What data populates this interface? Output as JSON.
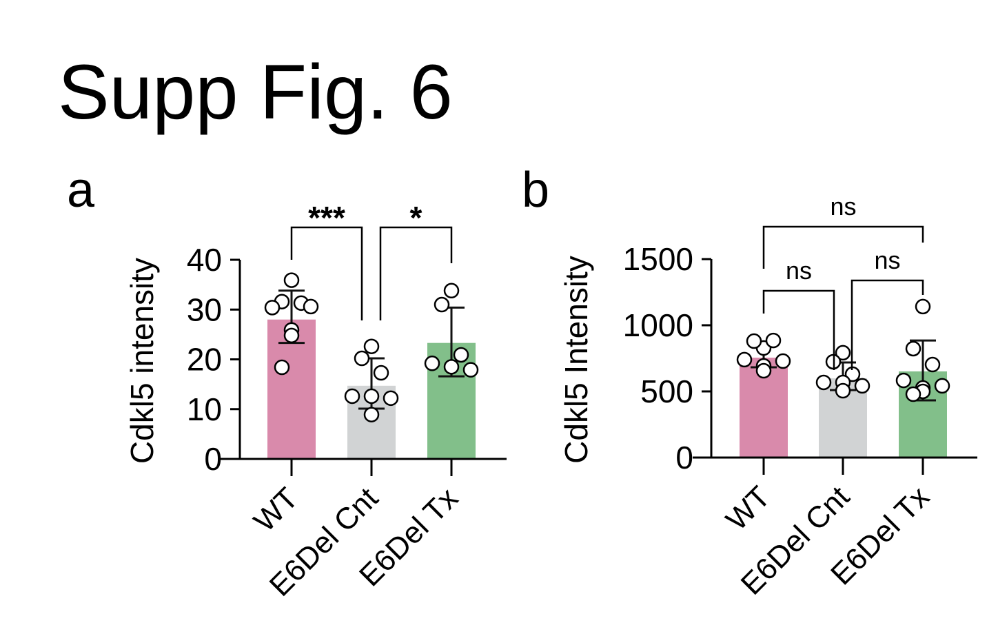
{
  "figure_title": "Supp Fig. 6",
  "chart_data": [
    {
      "panel_label": "a",
      "type": "bar",
      "ylabel": "Cdkl5 intensity",
      "ylim": [
        0,
        40
      ],
      "yticks": [
        0,
        10,
        20,
        30,
        40
      ],
      "categories": [
        "WT",
        "E6Del Cnt",
        "E6Del Tx"
      ],
      "colors": [
        "#d98aab",
        "#d1d3d4",
        "#82bf8a"
      ],
      "means": [
        28.0,
        14.7,
        23.3
      ],
      "error_upper": [
        33.8,
        20.2,
        30.4
      ],
      "error_lower": [
        23.3,
        10.1,
        16.6
      ],
      "points": [
        [
          35.9,
          31.6,
          31.3,
          30.4,
          30.6,
          25.9,
          24.8,
          18.4
        ],
        [
          22.6,
          20.2,
          17.3,
          12.6,
          12.2,
          12.6,
          8.9
        ],
        [
          33.8,
          31.0,
          20.9,
          19.2,
          17.9,
          18.5
        ]
      ],
      "significance": [
        {
          "groups": [
            "WT",
            "E6Del Cnt"
          ],
          "label": "***"
        },
        {
          "groups": [
            "E6Del Cnt",
            "E6Del Tx"
          ],
          "label": "*"
        }
      ]
    },
    {
      "panel_label": "b",
      "type": "bar",
      "ylabel": "Cdkl5 Intensity",
      "ylim": [
        0,
        1500
      ],
      "yticks": [
        0,
        500,
        1000,
        1500
      ],
      "categories": [
        "WT",
        "E6Del Cnt",
        "E6Del Tx"
      ],
      "colors": [
        "#d98aab",
        "#d1d3d4",
        "#82bf8a"
      ],
      "means": [
        755,
        599,
        651
      ],
      "error_upper": [
        859,
        719,
        885
      ],
      "error_lower": [
        682,
        510,
        432
      ],
      "points": [
        [
          828,
          880,
          885,
          740,
          729,
          693,
          656
        ],
        [
          792,
          724,
          630,
          568,
          542,
          568,
          505
        ],
        [
          1141,
          823,
          703,
          583,
          542,
          526,
          500,
          479
        ]
      ],
      "significance": [
        {
          "groups": [
            "WT",
            "E6Del Tx"
          ],
          "label": "ns"
        },
        {
          "groups": [
            "WT",
            "E6Del Cnt"
          ],
          "label": "ns"
        },
        {
          "groups": [
            "E6Del Cnt",
            "E6Del Tx"
          ],
          "label": "ns"
        }
      ]
    }
  ]
}
